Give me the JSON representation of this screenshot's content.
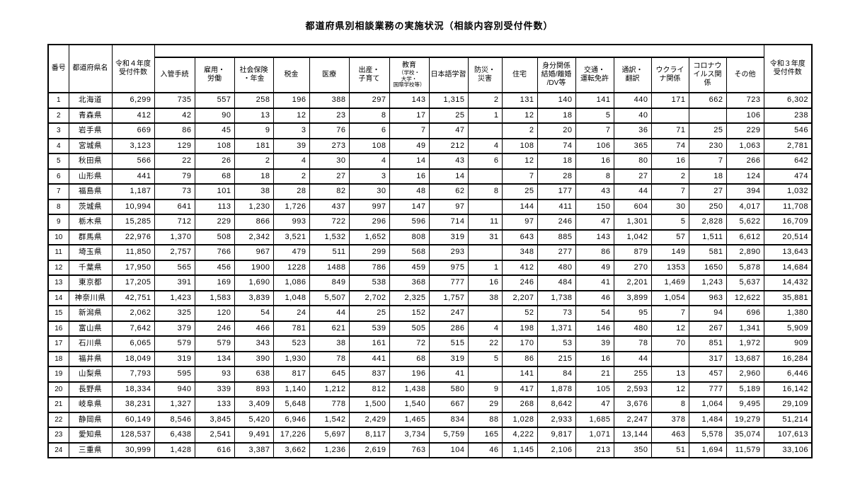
{
  "title": "都道府県別相談業務の実施状況（相談内容別受付件数）",
  "colors": {
    "text": "#000000",
    "background": "#ffffff",
    "border": "#000000"
  },
  "table": {
    "header": {
      "number": "番号",
      "prefecture": "都道府県名",
      "reiwa4_total": "令和４年度\n受付件数",
      "reiwa3_total": "令和３年度\n受付件数",
      "categories": [
        {
          "id": "immigration",
          "label": "入管手続"
        },
        {
          "id": "employment",
          "label": "雇用・\n労働"
        },
        {
          "id": "social-insurance",
          "label": "社会保険\n・年金"
        },
        {
          "id": "tax",
          "label": "税金"
        },
        {
          "id": "medical",
          "label": "医療"
        },
        {
          "id": "childbirth-childcare",
          "label": "出産・\n子育て"
        },
        {
          "id": "education",
          "label": "教育",
          "sub": "（学校・\n大学・\n国際学校等）"
        },
        {
          "id": "japanese-learning",
          "label": "日本語学習"
        },
        {
          "id": "disaster",
          "label": "防災・\n災害"
        },
        {
          "id": "housing",
          "label": "住宅"
        },
        {
          "id": "family-status",
          "label": "身分関係\n結婚/離婚\n/DV等"
        },
        {
          "id": "traffic-license",
          "label": "交通・\n運転免許"
        },
        {
          "id": "interpretation",
          "label": "通訳・\n翻訳"
        },
        {
          "id": "ukraine",
          "label": "ウクライ\nナ関係"
        },
        {
          "id": "covid",
          "label": "コロナウ\nイルス関\n係"
        },
        {
          "id": "other",
          "label": "その他"
        }
      ]
    },
    "rows": [
      {
        "no": "1",
        "pref": "北海道",
        "values": [
          "6,299",
          "735",
          "557",
          "258",
          "196",
          "388",
          "297",
          "143",
          "1,315",
          "2",
          "131",
          "140",
          "141",
          "440",
          "171",
          "662",
          "723",
          "6,302"
        ]
      },
      {
        "no": "2",
        "pref": "青森県",
        "values": [
          "412",
          "42",
          "90",
          "13",
          "12",
          "23",
          "8",
          "17",
          "25",
          "1",
          "12",
          "18",
          "5",
          "40",
          "",
          "",
          "106",
          "238"
        ]
      },
      {
        "no": "3",
        "pref": "岩手県",
        "values": [
          "669",
          "86",
          "45",
          "9",
          "3",
          "76",
          "6",
          "7",
          "47",
          "",
          "2",
          "20",
          "7",
          "36",
          "71",
          "25",
          "229",
          "546"
        ]
      },
      {
        "no": "4",
        "pref": "宮城県",
        "values": [
          "3,123",
          "129",
          "108",
          "181",
          "39",
          "273",
          "108",
          "49",
          "212",
          "4",
          "108",
          "74",
          "106",
          "365",
          "74",
          "230",
          "1,063",
          "2,781"
        ]
      },
      {
        "no": "5",
        "pref": "秋田県",
        "values": [
          "566",
          "22",
          "26",
          "2",
          "4",
          "30",
          "4",
          "14",
          "43",
          "6",
          "12",
          "18",
          "16",
          "80",
          "16",
          "7",
          "266",
          "642"
        ]
      },
      {
        "no": "6",
        "pref": "山形県",
        "values": [
          "441",
          "79",
          "68",
          "18",
          "2",
          "27",
          "3",
          "16",
          "14",
          "",
          "7",
          "28",
          "8",
          "27",
          "2",
          "18",
          "124",
          "474"
        ]
      },
      {
        "no": "7",
        "pref": "福島県",
        "values": [
          "1,187",
          "73",
          "101",
          "38",
          "28",
          "82",
          "30",
          "48",
          "62",
          "8",
          "25",
          "177",
          "43",
          "44",
          "7",
          "27",
          "394",
          "1,032"
        ]
      },
      {
        "no": "8",
        "pref": "茨城県",
        "values": [
          "10,994",
          "641",
          "113",
          "1,230",
          "1,726",
          "437",
          "997",
          "147",
          "97",
          "",
          "144",
          "411",
          "150",
          "604",
          "30",
          "250",
          "4,017",
          "11,708"
        ]
      },
      {
        "no": "9",
        "pref": "栃木県",
        "values": [
          "15,285",
          "712",
          "229",
          "866",
          "993",
          "722",
          "296",
          "596",
          "714",
          "11",
          "97",
          "246",
          "47",
          "1,301",
          "5",
          "2,828",
          "5,622",
          "16,709"
        ]
      },
      {
        "no": "10",
        "pref": "群馬県",
        "values": [
          "22,976",
          "1,370",
          "508",
          "2,342",
          "3,521",
          "1,532",
          "1,652",
          "808",
          "319",
          "31",
          "643",
          "885",
          "143",
          "1,042",
          "57",
          "1,511",
          "6,612",
          "20,514"
        ]
      },
      {
        "no": "11",
        "pref": "埼玉県",
        "values": [
          "11,850",
          "2,757",
          "766",
          "967",
          "479",
          "511",
          "299",
          "568",
          "293",
          "",
          "348",
          "277",
          "86",
          "879",
          "149",
          "581",
          "2,890",
          "13,643"
        ]
      },
      {
        "no": "12",
        "pref": "千葉県",
        "values": [
          "17,950",
          "565",
          "456",
          "1900",
          "1228",
          "1488",
          "786",
          "459",
          "975",
          "1",
          "412",
          "480",
          "49",
          "270",
          "1353",
          "1650",
          "5,878",
          "14,684"
        ]
      },
      {
        "no": "13",
        "pref": "東京都",
        "values": [
          "17,205",
          "391",
          "169",
          "1,690",
          "1,086",
          "849",
          "538",
          "368",
          "777",
          "16",
          "246",
          "484",
          "41",
          "2,201",
          "1,469",
          "1,243",
          "5,637",
          "14,432"
        ]
      },
      {
        "no": "14",
        "pref": "神奈川県",
        "values": [
          "42,751",
          "1,423",
          "1,583",
          "3,839",
          "1,048",
          "5,507",
          "2,702",
          "2,325",
          "1,757",
          "38",
          "2,207",
          "1,738",
          "46",
          "3,899",
          "1,054",
          "963",
          "12,622",
          "35,881"
        ]
      },
      {
        "no": "15",
        "pref": "新潟県",
        "values": [
          "2,062",
          "325",
          "120",
          "54",
          "24",
          "44",
          "25",
          "152",
          "247",
          "",
          "52",
          "73",
          "54",
          "95",
          "7",
          "94",
          "696",
          "1,380"
        ]
      },
      {
        "no": "16",
        "pref": "富山県",
        "values": [
          "7,642",
          "379",
          "246",
          "466",
          "781",
          "621",
          "539",
          "505",
          "286",
          "4",
          "198",
          "1,371",
          "146",
          "480",
          "12",
          "267",
          "1,341",
          "5,909"
        ]
      },
      {
        "no": "17",
        "pref": "石川県",
        "values": [
          "6,065",
          "579",
          "579",
          "343",
          "523",
          "38",
          "161",
          "72",
          "515",
          "22",
          "170",
          "53",
          "39",
          "78",
          "70",
          "851",
          "1,972",
          "909"
        ]
      },
      {
        "no": "18",
        "pref": "福井県",
        "values": [
          "18,049",
          "319",
          "134",
          "390",
          "1,930",
          "78",
          "441",
          "68",
          "319",
          "5",
          "86",
          "215",
          "16",
          "44",
          "",
          "317",
          "13,687",
          "16,284"
        ]
      },
      {
        "no": "19",
        "pref": "山梨県",
        "values": [
          "7,793",
          "595",
          "93",
          "638",
          "817",
          "645",
          "837",
          "196",
          "41",
          "",
          "141",
          "84",
          "21",
          "255",
          "13",
          "457",
          "2,960",
          "6,446"
        ]
      },
      {
        "no": "20",
        "pref": "長野県",
        "values": [
          "18,334",
          "940",
          "339",
          "893",
          "1,140",
          "1,212",
          "812",
          "1,438",
          "580",
          "9",
          "417",
          "1,878",
          "105",
          "2,593",
          "12",
          "777",
          "5,189",
          "16,142"
        ]
      },
      {
        "no": "21",
        "pref": "岐阜県",
        "values": [
          "38,231",
          "1,327",
          "133",
          "3,409",
          "5,648",
          "778",
          "1,500",
          "1,540",
          "667",
          "29",
          "268",
          "8,642",
          "47",
          "3,676",
          "8",
          "1,064",
          "9,495",
          "29,109"
        ]
      },
      {
        "no": "22",
        "pref": "静岡県",
        "values": [
          "60,149",
          "8,546",
          "3,845",
          "5,420",
          "6,946",
          "1,542",
          "2,429",
          "1,465",
          "834",
          "88",
          "1,028",
          "2,933",
          "1,685",
          "2,247",
          "378",
          "1,484",
          "19,279",
          "51,214"
        ]
      },
      {
        "no": "23",
        "pref": "愛知県",
        "values": [
          "128,537",
          "6,438",
          "2,541",
          "9,491",
          "17,226",
          "5,697",
          "8,117",
          "3,734",
          "5,759",
          "165",
          "4,222",
          "9,817",
          "1,071",
          "13,144",
          "463",
          "5,578",
          "35,074",
          "107,613"
        ]
      },
      {
        "no": "24",
        "pref": "三重県",
        "values": [
          "30,999",
          "1,428",
          "616",
          "3,387",
          "3,662",
          "1,236",
          "2,619",
          "763",
          "104",
          "46",
          "1,145",
          "2,106",
          "213",
          "350",
          "51",
          "1,694",
          "11,579",
          "33,106"
        ]
      }
    ]
  }
}
